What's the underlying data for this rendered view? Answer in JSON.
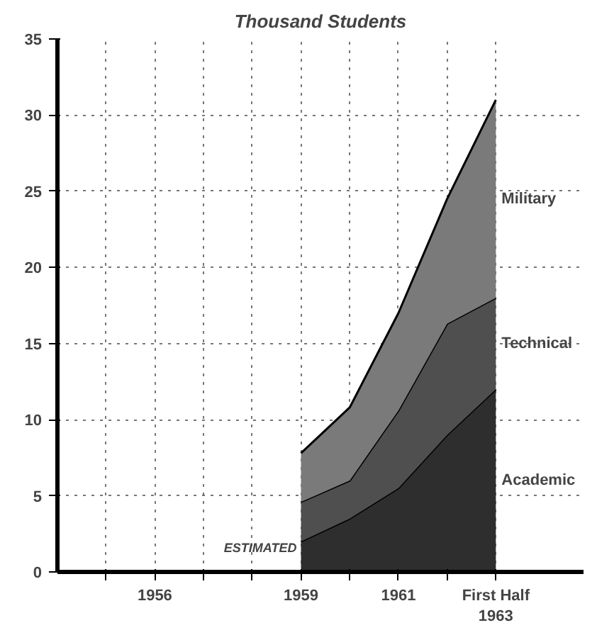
{
  "chart_data": {
    "type": "area",
    "stacked": true,
    "title": "Thousand Students",
    "x": [
      1959,
      1960,
      1961,
      1962,
      1963
    ],
    "series": [
      {
        "name": "Academic",
        "color": "#2e2e2e",
        "values": [
          2,
          3.5,
          5.5,
          9,
          12
        ]
      },
      {
        "name": "Technical",
        "color": "#4f4f4f",
        "values": [
          2.6,
          2.5,
          5.1,
          7.3,
          6
        ]
      },
      {
        "name": "Military",
        "color": "#7a7a7a",
        "values": [
          3.2,
          4.8,
          6.4,
          8.2,
          13
        ]
      }
    ],
    "xlim": [
      1954,
      1964.8
    ],
    "ylim": [
      0,
      35
    ],
    "xticks": [
      {
        "value": 1955,
        "label": null
      },
      1956,
      {
        "value": 1957,
        "label": null
      },
      {
        "value": 1958,
        "label": null
      },
      1959,
      {
        "value": 1960,
        "label": null
      },
      1961,
      {
        "value": 1962,
        "label": null
      },
      {
        "value": 1963,
        "label": "First Half\n1963"
      }
    ],
    "yticks": [
      0,
      5,
      10,
      15,
      20,
      25,
      30,
      35
    ],
    "grid": true,
    "line_style": "dotted",
    "legend": false,
    "annotations": [
      "ESTIMATED"
    ]
  }
}
